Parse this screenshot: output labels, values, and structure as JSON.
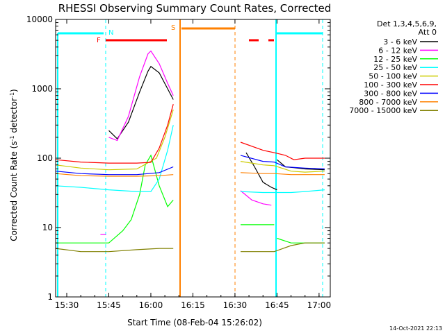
{
  "chart_data": {
    "type": "line",
    "title": "RHESSI Observing Summary Count Rates, Corrected",
    "xlabel": "Start Time (08-Feb-04 15:26:02)",
    "ylabel_prefix": "Corrected Count Rate (s",
    "ylabel_sup1": "-1",
    "ylabel_mid": " detector",
    "ylabel_sup2": "-1",
    "ylabel_suffix": ")",
    "y_scale": "log",
    "ylim": [
      1,
      10000
    ],
    "xlim": [
      "15:26:02",
      "17:04:00"
    ],
    "x_ticks": [
      "15:30",
      "15:45",
      "16:00",
      "16:15",
      "16:30",
      "16:45",
      "17:00"
    ],
    "y_ticks": [
      "1",
      "10",
      "100",
      "1000",
      "10000"
    ],
    "legend_title_1": "Det 1,3,4,5,6,9,",
    "legend_title_2": "Att 0",
    "legend_position": "right",
    "flags": [
      {
        "label": "N",
        "color": "#00ffff"
      },
      {
        "label": "F",
        "color": "#ff0000"
      },
      {
        "label": "S",
        "color": "#ff8000"
      }
    ],
    "series": [
      {
        "name": "3 - 6 keV",
        "color": "#000000",
        "segments": [
          [
            [
              "15:45",
              "250"
            ],
            [
              "15:48",
              "190"
            ],
            [
              "15:52",
              "330"
            ],
            [
              "15:56",
              "900"
            ],
            [
              "15:59",
              "1800"
            ],
            [
              "16:00",
              "2100"
            ],
            [
              "16:03",
              "1700"
            ],
            [
              "16:06",
              "1000"
            ],
            [
              "16:08",
              "700"
            ]
          ],
          [
            [
              "16:34",
              "120"
            ],
            [
              "16:37",
              "75"
            ],
            [
              "16:40",
              "45"
            ],
            [
              "16:43",
              "38"
            ],
            [
              "16:45",
              "35"
            ]
          ],
          [
            [
              "16:45",
              "95"
            ],
            [
              "16:48",
              "75"
            ],
            [
              "16:51",
              "73"
            ],
            [
              "16:55",
              "70"
            ],
            [
              "17:02",
              "68"
            ]
          ]
        ]
      },
      {
        "name": "6 - 12 keV",
        "color": "#ff00ff",
        "segments": [
          [
            [
              "15:42",
              "8"
            ],
            [
              "15:44",
              "8"
            ]
          ],
          [
            [
              "15:45",
              "200"
            ],
            [
              "15:48",
              "180"
            ],
            [
              "15:52",
              "400"
            ],
            [
              "15:56",
              "1500"
            ],
            [
              "15:59",
              "3200"
            ],
            [
              "16:00",
              "3500"
            ],
            [
              "16:03",
              "2300"
            ],
            [
              "16:06",
              "1200"
            ],
            [
              "16:08",
              "800"
            ]
          ],
          [
            [
              "16:32",
              "34"
            ],
            [
              "16:36",
              "25"
            ],
            [
              "16:40",
              "22"
            ],
            [
              "16:43",
              "21"
            ]
          ]
        ]
      },
      {
        "name": "12 - 25 keV",
        "color": "#00ff00",
        "segments": [
          [
            [
              "15:26",
              "6"
            ],
            [
              "15:42",
              "6"
            ],
            [
              "15:45",
              "6"
            ],
            [
              "15:50",
              "9"
            ],
            [
              "15:53",
              "13"
            ],
            [
              "15:56",
              "30"
            ],
            [
              "15:58",
              "80"
            ],
            [
              "16:00",
              "110"
            ],
            [
              "16:03",
              "40"
            ],
            [
              "16:06",
              "20"
            ],
            [
              "16:08",
              "25"
            ]
          ],
          [
            [
              "16:32",
              "11"
            ],
            [
              "16:40",
              "11"
            ],
            [
              "16:44",
              "11"
            ]
          ],
          [
            [
              "16:45",
              "7"
            ],
            [
              "16:50",
              "6"
            ],
            [
              "16:55",
              "6"
            ],
            [
              "17:02",
              "6"
            ]
          ]
        ]
      },
      {
        "name": "25 - 50 keV",
        "color": "#00ffff",
        "segments": [
          [
            [
              "15:26",
              "40"
            ],
            [
              "15:35",
              "38"
            ],
            [
              "15:45",
              "35"
            ],
            [
              "15:55",
              "33"
            ],
            [
              "16:00",
              "33"
            ],
            [
              "16:03",
              "50"
            ],
            [
              "16:06",
              "130"
            ],
            [
              "16:08",
              "300"
            ]
          ],
          [
            [
              "16:32",
              "33"
            ],
            [
              "16:40",
              "32"
            ],
            [
              "16:44",
              "32"
            ],
            [
              "16:50",
              "32"
            ],
            [
              "16:55",
              "33"
            ],
            [
              "17:02",
              "35"
            ]
          ]
        ]
      },
      {
        "name": "50 - 100 keV",
        "color": "#cccc00",
        "segments": [
          [
            [
              "15:26",
              "80"
            ],
            [
              "15:35",
              "72"
            ],
            [
              "15:45",
              "68"
            ],
            [
              "15:55",
              "70"
            ],
            [
              "16:02",
              "100"
            ],
            [
              "16:05",
              "200"
            ],
            [
              "16:08",
              "500"
            ]
          ],
          [
            [
              "16:32",
              "90"
            ],
            [
              "16:40",
              "80"
            ],
            [
              "16:44",
              "78"
            ],
            [
              "16:50",
              "65"
            ],
            [
              "16:55",
              "63"
            ],
            [
              "17:02",
              "65"
            ]
          ]
        ]
      },
      {
        "name": "100 - 300 keV",
        "color": "#ff0000",
        "segments": [
          [
            [
              "15:26",
              "95"
            ],
            [
              "15:35",
              "88"
            ],
            [
              "15:45",
              "85"
            ],
            [
              "15:55",
              "85"
            ],
            [
              "16:00",
              "87"
            ],
            [
              "16:03",
              "140"
            ],
            [
              "16:06",
              "300"
            ],
            [
              "16:08",
              "600"
            ]
          ],
          [
            [
              "16:32",
              "170"
            ],
            [
              "16:40",
              "130"
            ],
            [
              "16:44",
              "120"
            ],
            [
              "16:48",
              "110"
            ],
            [
              "16:51",
              "95"
            ],
            [
              "16:55",
              "100"
            ],
            [
              "17:02",
              "100"
            ]
          ]
        ]
      },
      {
        "name": "300 - 800 keV",
        "color": "#0000ff",
        "segments": [
          [
            [
              "15:26",
              "65"
            ],
            [
              "15:35",
              "60"
            ],
            [
              "15:45",
              "58"
            ],
            [
              "15:55",
              "58"
            ],
            [
              "16:03",
              "62"
            ],
            [
              "16:08",
              "75"
            ]
          ],
          [
            [
              "16:32",
              "110"
            ],
            [
              "16:40",
              "90"
            ],
            [
              "16:44",
              "88"
            ],
            [
              "16:48",
              "75"
            ],
            [
              "16:55",
              "72"
            ],
            [
              "17:02",
              "70"
            ]
          ]
        ]
      },
      {
        "name": "800 - 7000 keV",
        "color": "#ff8000",
        "segments": [
          [
            [
              "15:26",
              "60"
            ],
            [
              "15:35",
              "56"
            ],
            [
              "15:45",
              "55"
            ],
            [
              "15:55",
              "55"
            ],
            [
              "16:03",
              "56"
            ],
            [
              "16:08",
              "58"
            ]
          ],
          [
            [
              "16:32",
              "62"
            ],
            [
              "16:40",
              "60"
            ],
            [
              "16:44",
              "60"
            ],
            [
              "16:50",
              "58"
            ],
            [
              "16:55",
              "58"
            ],
            [
              "17:02",
              "58"
            ]
          ]
        ]
      },
      {
        "name": "7000 - 15000 keV",
        "color": "#808000",
        "segments": [
          [
            [
              "15:26",
              "5"
            ],
            [
              "15:35",
              "4.5"
            ],
            [
              "15:45",
              "4.5"
            ],
            [
              "15:55",
              "4.8"
            ],
            [
              "16:03",
              "5"
            ],
            [
              "16:08",
              "5"
            ]
          ],
          [
            [
              "16:32",
              "4.5"
            ],
            [
              "16:40",
              "4.5"
            ],
            [
              "16:44",
              "4.5"
            ],
            [
              "16:50",
              "5.5"
            ],
            [
              "16:55",
              "6"
            ],
            [
              "17:02",
              "6"
            ]
          ]
        ]
      }
    ]
  },
  "timestamp": "14-Oct-2021 22:13"
}
